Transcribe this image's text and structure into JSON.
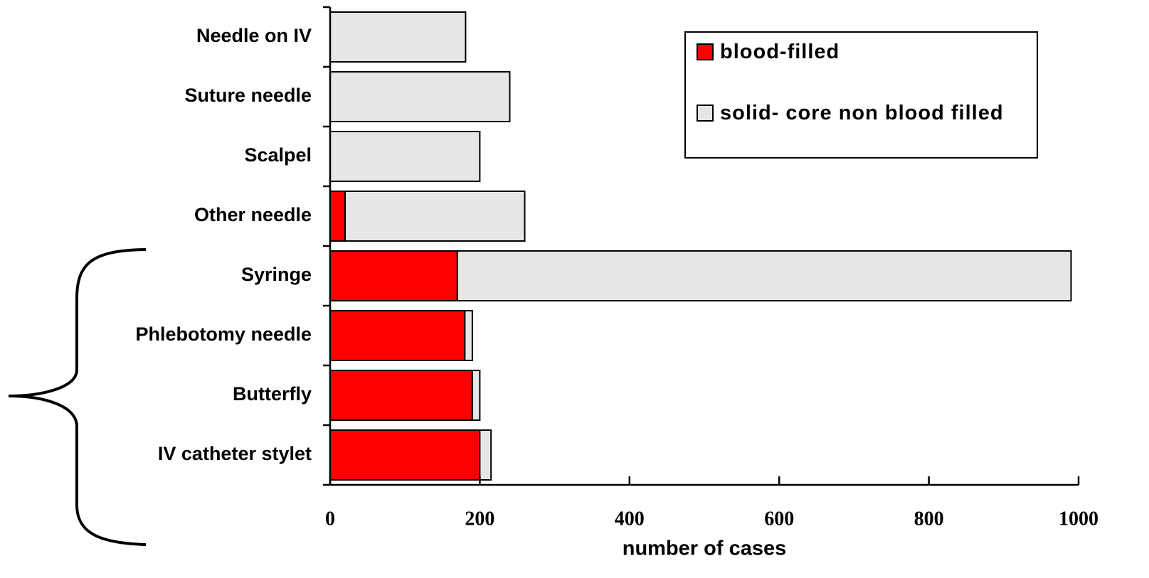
{
  "chart_data": {
    "type": "stacked-horizontal-bar",
    "categories": [
      "Needle on IV",
      "Suture needle",
      "Scalpel",
      "Other needle",
      "Syringe",
      "Phlebotomy needle",
      "Butterfly",
      "IV catheter stylet"
    ],
    "series": [
      {
        "name": "blood-filled",
        "color": "#ff0000",
        "values": [
          0,
          0,
          0,
          20,
          170,
          180,
          190,
          200
        ]
      },
      {
        "name": "solid- core non blood filled",
        "color": "#e6e6e6",
        "values": [
          181,
          240,
          200,
          240,
          820,
          10,
          10,
          15
        ]
      }
    ],
    "xlabel": "number of cases",
    "xlim": [
      0,
      1000
    ],
    "xticks": [
      0,
      200,
      400,
      600,
      800,
      1000
    ],
    "legend": "upper right"
  }
}
